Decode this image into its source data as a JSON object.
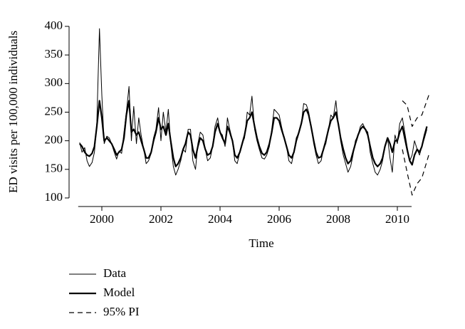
{
  "chart_data": {
    "type": "line",
    "xlabel": "Time",
    "ylabel": "ED visits per 100,000 individuals",
    "xlim": [
      1999.2,
      2011.4
    ],
    "ylim": [
      90,
      405
    ],
    "xticks": [
      2000,
      2002,
      2004,
      2006,
      2008,
      2010
    ],
    "yticks": [
      100,
      150,
      200,
      250,
      300,
      350,
      400
    ],
    "legend": "bottom-left",
    "x": [
      1999.25,
      1999.33,
      1999.42,
      1999.5,
      1999.58,
      1999.67,
      1999.75,
      1999.83,
      1999.92,
      2000,
      2000.08,
      2000.17,
      2000.25,
      2000.33,
      2000.42,
      2000.5,
      2000.58,
      2000.67,
      2000.75,
      2000.83,
      2000.92,
      2001,
      2001.08,
      2001.17,
      2001.25,
      2001.33,
      2001.42,
      2001.5,
      2001.58,
      2001.67,
      2001.75,
      2001.83,
      2001.92,
      2002,
      2002.08,
      2002.17,
      2002.25,
      2002.33,
      2002.42,
      2002.5,
      2002.58,
      2002.67,
      2002.75,
      2002.83,
      2002.92,
      2003,
      2003.08,
      2003.17,
      2003.25,
      2003.33,
      2003.42,
      2003.5,
      2003.58,
      2003.67,
      2003.75,
      2003.83,
      2003.92,
      2004,
      2004.08,
      2004.17,
      2004.25,
      2004.33,
      2004.42,
      2004.5,
      2004.58,
      2004.67,
      2004.75,
      2004.83,
      2004.92,
      2005,
      2005.08,
      2005.17,
      2005.25,
      2005.33,
      2005.42,
      2005.5,
      2005.58,
      2005.67,
      2005.75,
      2005.83,
      2005.92,
      2006,
      2006.08,
      2006.17,
      2006.25,
      2006.33,
      2006.42,
      2006.5,
      2006.58,
      2006.67,
      2006.75,
      2006.83,
      2006.92,
      2007,
      2007.08,
      2007.17,
      2007.25,
      2007.33,
      2007.42,
      2007.5,
      2007.58,
      2007.67,
      2007.75,
      2007.83,
      2007.92,
      2008,
      2008.08,
      2008.17,
      2008.25,
      2008.33,
      2008.42,
      2008.5,
      2008.58,
      2008.67,
      2008.75,
      2008.83,
      2008.92,
      2009,
      2009.08,
      2009.17,
      2009.25,
      2009.33,
      2009.42,
      2009.5,
      2009.58,
      2009.67,
      2009.75,
      2009.83,
      2009.92,
      2010,
      2010.08,
      2010.17,
      2010.25,
      2010.33,
      2010.42,
      2010.5,
      2010.58,
      2010.67,
      2010.75,
      2010.83,
      2010.92,
      2011
    ],
    "series": [
      {
        "name": "Data",
        "color": "#000000",
        "line_width": 1,
        "dashed": false,
        "values": [
          197,
          180,
          188,
          165,
          155,
          162,
          180,
          230,
          396,
          280,
          195,
          208,
          205,
          195,
          180,
          168,
          182,
          178,
          215,
          250,
          295,
          200,
          260,
          195,
          240,
          210,
          185,
          160,
          165,
          178,
          205,
          220,
          258,
          200,
          250,
          215,
          255,
          195,
          155,
          140,
          150,
          165,
          185,
          180,
          220,
          220,
          165,
          150,
          195,
          215,
          210,
          185,
          165,
          170,
          190,
          225,
          240,
          215,
          210,
          190,
          240,
          220,
          200,
          165,
          160,
          180,
          195,
          205,
          250,
          245,
          278,
          220,
          200,
          185,
          170,
          168,
          175,
          190,
          220,
          255,
          250,
          245,
          225,
          205,
          190,
          165,
          160,
          180,
          205,
          215,
          230,
          265,
          263,
          250,
          225,
          195,
          175,
          160,
          165,
          185,
          195,
          220,
          245,
          240,
          270,
          230,
          200,
          175,
          160,
          145,
          155,
          175,
          200,
          210,
          225,
          230,
          220,
          215,
          180,
          160,
          145,
          140,
          150,
          165,
          190,
          205,
          170,
          145,
          210,
          195,
          230,
          240,
          215,
          190,
          165,
          175,
          200,
          185,
          175,
          190,
          205,
          220
        ]
      },
      {
        "name": "Model",
        "color": "#000000",
        "line_width": 2.2,
        "dashed": false,
        "values": [
          195,
          190,
          180,
          175,
          173,
          178,
          190,
          225,
          270,
          240,
          200,
          205,
          200,
          195,
          185,
          175,
          180,
          185,
          205,
          245,
          270,
          215,
          220,
          210,
          215,
          200,
          185,
          170,
          170,
          180,
          200,
          215,
          240,
          220,
          225,
          210,
          230,
          200,
          170,
          155,
          160,
          170,
          185,
          195,
          215,
          210,
          185,
          170,
          190,
          205,
          200,
          185,
          175,
          178,
          190,
          215,
          230,
          215,
          205,
          195,
          225,
          215,
          200,
          175,
          170,
          180,
          195,
          210,
          235,
          240,
          250,
          225,
          205,
          190,
          178,
          175,
          180,
          195,
          215,
          240,
          240,
          235,
          220,
          205,
          190,
          175,
          170,
          180,
          200,
          215,
          230,
          250,
          255,
          245,
          225,
          200,
          180,
          170,
          172,
          185,
          200,
          220,
          235,
          240,
          250,
          230,
          205,
          185,
          170,
          160,
          165,
          180,
          195,
          210,
          220,
          225,
          220,
          210,
          190,
          170,
          160,
          155,
          160,
          170,
          190,
          205,
          195,
          180,
          200,
          200,
          215,
          225,
          205,
          185,
          165,
          158,
          175,
          185,
          180,
          190,
          210,
          225
        ]
      },
      {
        "name": "95% PI",
        "color": "#000000",
        "line_width": 1.2,
        "dashed": true,
        "x": [
          2010.17,
          2010.33,
          2010.5,
          2010.67,
          2010.83,
          2011.08
        ],
        "upper": [
          270,
          262,
          225,
          240,
          245,
          282
        ],
        "lower": [
          185,
          145,
          105,
          125,
          135,
          178
        ]
      }
    ]
  }
}
